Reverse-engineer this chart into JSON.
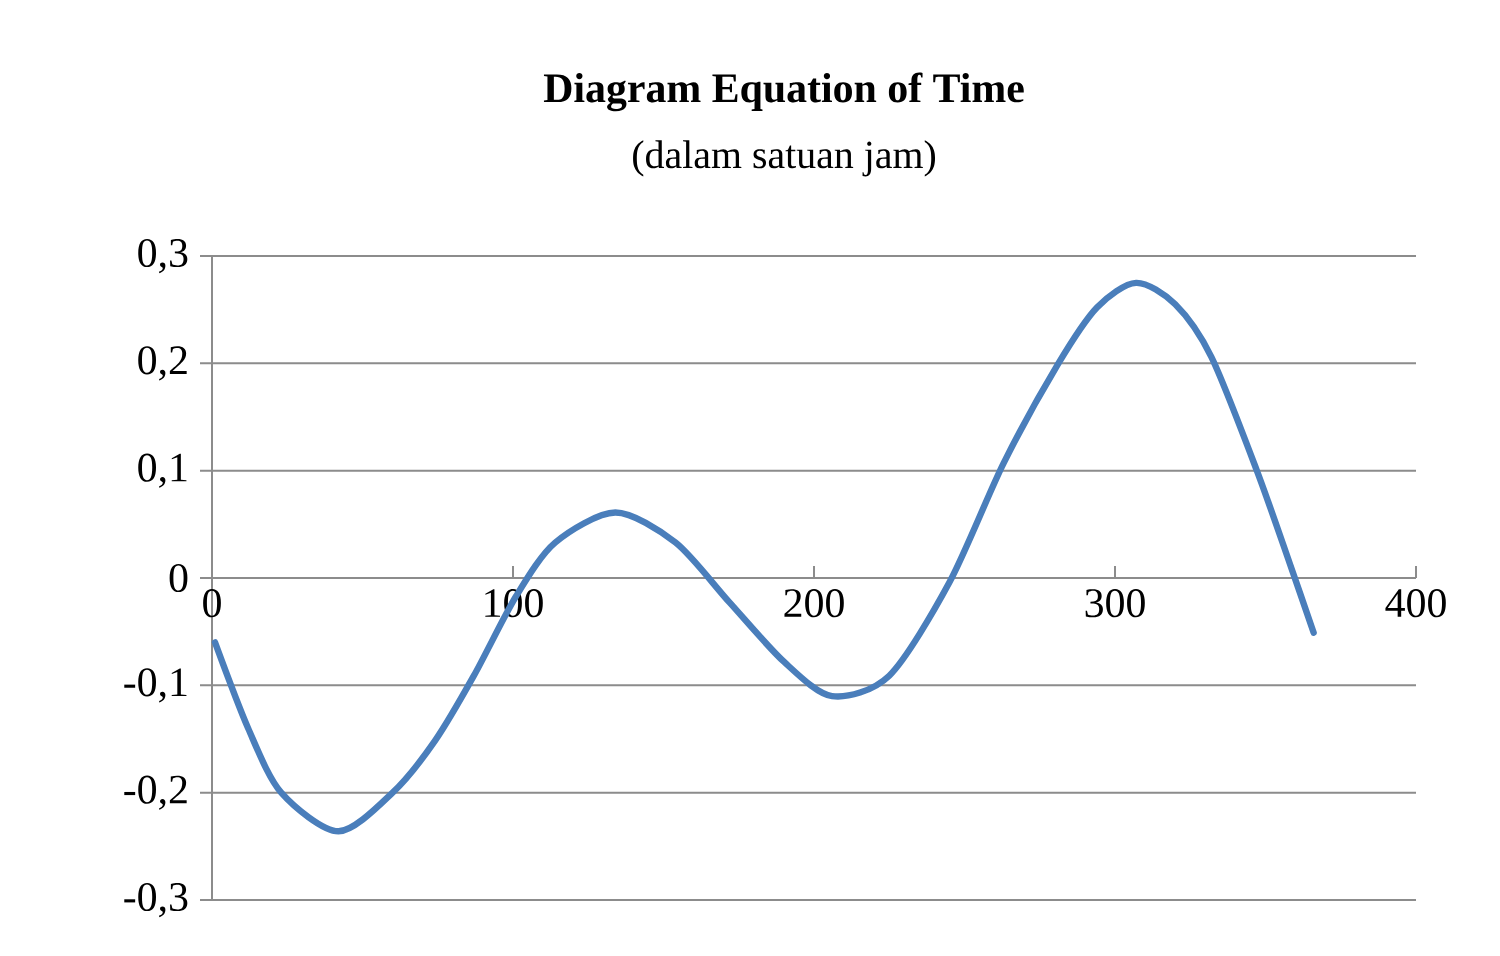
{
  "chart_data": {
    "type": "line",
    "title": "Diagram Equation of Time",
    "subtitle": "(dalam satuan jam)",
    "x": [
      1,
      12,
      23,
      42,
      60,
      74,
      87,
      101,
      114,
      134,
      154,
      172,
      190,
      206,
      225,
      245,
      263,
      281,
      294,
      307,
      320,
      332,
      347,
      358,
      366
    ],
    "series": [
      {
        "color": "#4a7ebb",
        "values": [
          -0.06,
          -0.14,
          -0.2,
          -0.236,
          -0.2,
          -0.152,
          -0.091,
          -0.017,
          0.033,
          0.061,
          0.033,
          -0.023,
          -0.078,
          -0.11,
          -0.091,
          -0.004,
          0.107,
          0.199,
          0.252,
          0.275,
          0.255,
          0.206,
          0.101,
          0.014,
          -0.051
        ]
      }
    ],
    "xlim": [
      0,
      400
    ],
    "xticks": [
      0,
      100,
      200,
      300,
      400
    ],
    "ylim": [
      -0.3,
      0.3
    ],
    "yticks": [
      {
        "value": -0.3,
        "label": "-0,3"
      },
      {
        "value": -0.2,
        "label": "-0,2"
      },
      {
        "value": -0.1,
        "label": "-0,1"
      },
      0,
      {
        "value": 0.1,
        "label": "0,1"
      },
      {
        "value": 0.2,
        "label": "0,2"
      },
      {
        "value": 0.3,
        "label": "0,3"
      }
    ],
    "grid": "y",
    "line_style": "solid"
  }
}
